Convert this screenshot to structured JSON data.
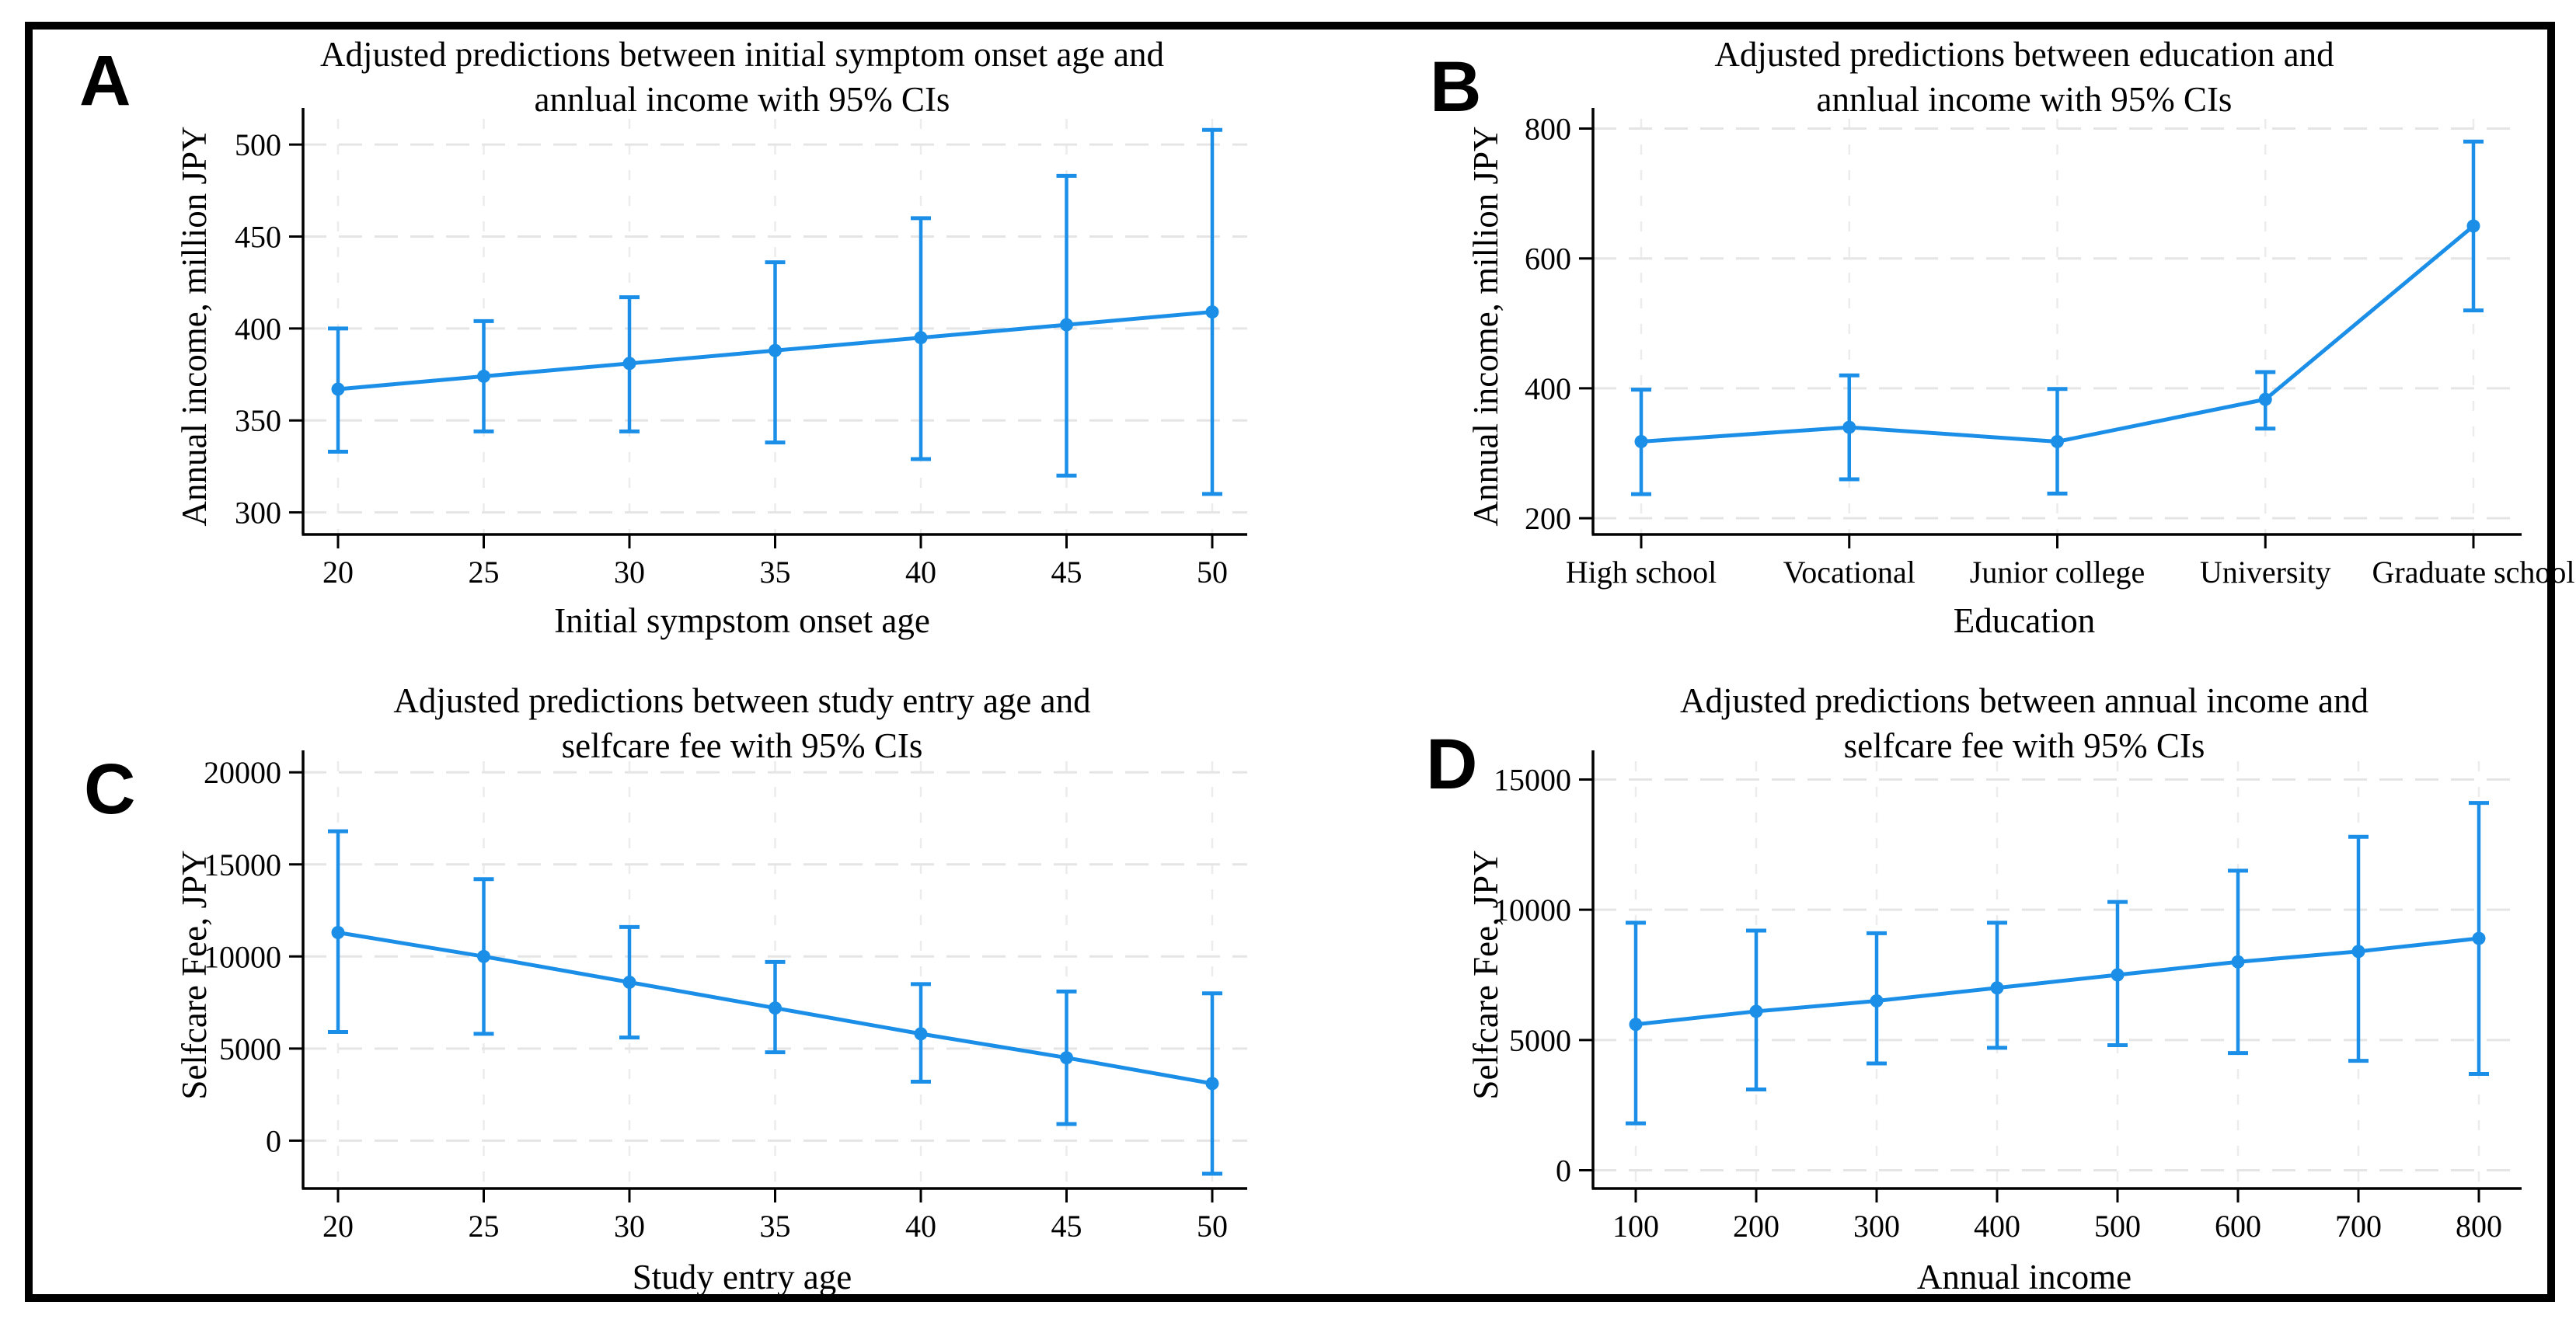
{
  "styles": {
    "series_color": "#1b8fe8",
    "grid_color": "#e5e5e5",
    "grid_color_vertical": "#ececec",
    "axis_color": "#000000",
    "border_color": "#000000",
    "background_color": "#ffffff"
  },
  "chart_data": [
    {
      "type": "line",
      "panel_label": "A",
      "title_line1": "Adjusted predictions between initial symptom onset age and",
      "title_line2": "annlual income with 95% CIs",
      "xlabel": "Initial sympstom onset age",
      "ylabel": "Annual income, million JPY",
      "categories": [
        "20",
        "25",
        "30",
        "35",
        "40",
        "45",
        "50"
      ],
      "values": [
        367,
        374,
        381,
        388,
        395,
        402,
        409
      ],
      "ci_low": [
        333,
        344,
        344,
        338,
        329,
        320,
        310
      ],
      "ci_high": [
        400,
        404,
        417,
        436,
        460,
        483,
        508
      ],
      "yticks": [
        300,
        350,
        400,
        450,
        500
      ],
      "ylim": [
        288,
        514
      ],
      "grid": true,
      "legend": "none",
      "ci_level": "95%"
    },
    {
      "type": "line",
      "panel_label": "B",
      "title_line1": "Adjusted predictions between education and",
      "title_line2": "annlual income with 95% CIs",
      "xlabel": "Education",
      "ylabel": "Annual income, million JPY",
      "categories": [
        "High school",
        "Vocational",
        "Junior college",
        "University",
        "Graduate school"
      ],
      "values": [
        318,
        340,
        318,
        383,
        650
      ],
      "ci_low": [
        237,
        260,
        238,
        338,
        520
      ],
      "ci_high": [
        398,
        420,
        399,
        425,
        780
      ],
      "yticks": [
        200,
        400,
        600,
        800
      ],
      "ylim": [
        175,
        815
      ],
      "grid": true,
      "legend": "none",
      "ci_level": "95%"
    },
    {
      "type": "line",
      "panel_label": "C",
      "title_line1": "Adjusted predictions between study entry age and",
      "title_line2": "selfcare fee with 95% CIs",
      "xlabel": "Study entry age",
      "ylabel": "Selfcare Fee, JPY",
      "categories": [
        "20",
        "25",
        "30",
        "35",
        "40",
        "45",
        "50"
      ],
      "values": [
        11300,
        10000,
        8600,
        7200,
        5800,
        4500,
        3100
      ],
      "ci_low": [
        5900,
        5800,
        5600,
        4800,
        3200,
        900,
        -1800
      ],
      "ci_high": [
        16800,
        14200,
        11600,
        9700,
        8500,
        8100,
        8000
      ],
      "yticks": [
        0,
        5000,
        10000,
        15000,
        20000
      ],
      "ylim": [
        -2600,
        20600
      ],
      "grid": true,
      "legend": "none",
      "ci_level": "95%"
    },
    {
      "type": "line",
      "panel_label": "D",
      "title_line1": "Adjusted predictions between annual income and",
      "title_line2": "selfcare fee with 95% CIs",
      "xlabel": "Annual income",
      "ylabel": "Selfcare Fee, JPY",
      "categories": [
        "100",
        "200",
        "300",
        "400",
        "500",
        "600",
        "700",
        "800"
      ],
      "values": [
        5600,
        6100,
        6500,
        7000,
        7500,
        8000,
        8400,
        8900
      ],
      "ci_low": [
        1800,
        3100,
        4100,
        4700,
        4800,
        4500,
        4200,
        3700
      ],
      "ci_high": [
        9500,
        9200,
        9100,
        9500,
        10300,
        11500,
        12800,
        14100
      ],
      "yticks": [
        0,
        5000,
        10000,
        15000
      ],
      "ylim": [
        -700,
        15700
      ],
      "grid": true,
      "legend": "none",
      "ci_level": "95%"
    }
  ]
}
